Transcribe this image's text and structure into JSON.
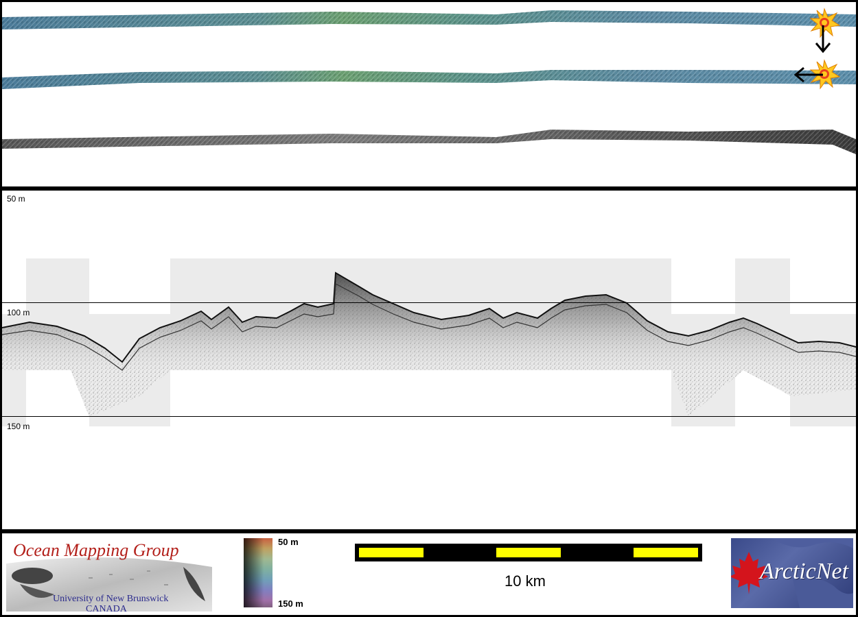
{
  "profile": {
    "depth_labels": [
      "50 m",
      "100 m",
      "150 m"
    ]
  },
  "legend": {
    "group_name": "Ocean Mapping Group",
    "university": "University of New Brunswick",
    "country": "CANADA",
    "colorbar_top": "50 m",
    "colorbar_bottom": "150 m",
    "scale_label": "10 km",
    "partner_logo_text": "ArcticNet"
  },
  "colors": {
    "scale_fill": "#ffff00",
    "omg_red": "#b3201b",
    "unb_blue": "#2a2a8c",
    "arcticnet_bg": "#3a4a8a"
  },
  "icons": [
    "sun-icon",
    "arrow-down-icon",
    "arrow-left-icon",
    "maple-leaf-icon"
  ]
}
